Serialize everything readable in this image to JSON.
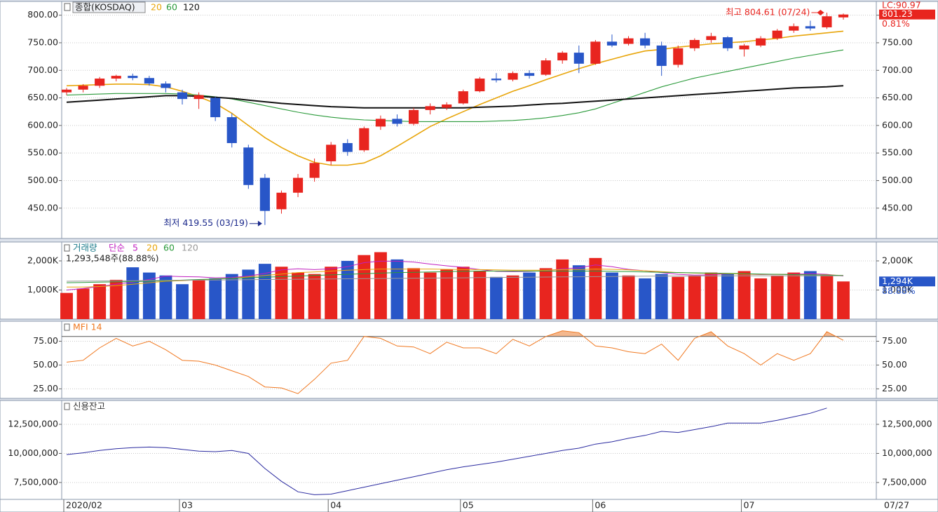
{
  "chart_data": [
    {
      "type": "candlestick",
      "title": "종합(KOSDAQ)",
      "categories": [
        "2020/02",
        null,
        null,
        null,
        null,
        null,
        null,
        "03",
        null,
        null,
        null,
        null,
        null,
        null,
        null,
        null,
        "04",
        null,
        null,
        null,
        null,
        null,
        null,
        null,
        "05",
        null,
        null,
        null,
        null,
        null,
        null,
        null,
        "06",
        null,
        null,
        null,
        null,
        null,
        null,
        null,
        null,
        "07",
        null,
        null,
        null,
        null,
        null,
        "07/27"
      ],
      "ohlc": [
        [
          660,
          668,
          655,
          665
        ],
        [
          665,
          675,
          660,
          672
        ],
        [
          672,
          688,
          668,
          685
        ],
        [
          685,
          692,
          680,
          690
        ],
        [
          690,
          694,
          682,
          686
        ],
        [
          686,
          690,
          672,
          676
        ],
        [
          676,
          680,
          660,
          668
        ],
        [
          660,
          665,
          638,
          648
        ],
        [
          648,
          660,
          630,
          655
        ],
        [
          650,
          652,
          608,
          615
        ],
        [
          615,
          622,
          560,
          568
        ],
        [
          560,
          565,
          485,
          492
        ],
        [
          505,
          512,
          419.55,
          445
        ],
        [
          448,
          482,
          440,
          478
        ],
        [
          478,
          512,
          470,
          505
        ],
        [
          505,
          540,
          498,
          532
        ],
        [
          535,
          570,
          528,
          565
        ],
        [
          568,
          575,
          545,
          552
        ],
        [
          555,
          598,
          552,
          595
        ],
        [
          598,
          618,
          592,
          612
        ],
        [
          612,
          620,
          598,
          603
        ],
        [
          603,
          632,
          600,
          628
        ],
        [
          628,
          640,
          620,
          635
        ],
        [
          632,
          642,
          628,
          638
        ],
        [
          640,
          665,
          638,
          662
        ],
        [
          662,
          688,
          660,
          685
        ],
        [
          685,
          695,
          678,
          682
        ],
        [
          683,
          698,
          680,
          695
        ],
        [
          695,
          700,
          685,
          690
        ],
        [
          692,
          722,
          690,
          718
        ],
        [
          718,
          735,
          712,
          732
        ],
        [
          732,
          745,
          695,
          712
        ],
        [
          712,
          755,
          710,
          752
        ],
        [
          752,
          765,
          742,
          745
        ],
        [
          748,
          762,
          745,
          758
        ],
        [
          758,
          768,
          740,
          745
        ],
        [
          745,
          752,
          690,
          708
        ],
        [
          710,
          745,
          705,
          740
        ],
        [
          740,
          758,
          735,
          755
        ],
        [
          755,
          768,
          750,
          762
        ],
        [
          760,
          762,
          735,
          740
        ],
        [
          738,
          748,
          725,
          745
        ],
        [
          745,
          762,
          742,
          758
        ],
        [
          758,
          775,
          755,
          772
        ],
        [
          772,
          785,
          768,
          780
        ],
        [
          780,
          790,
          772,
          776
        ],
        [
          778,
          804.61,
          775,
          798
        ],
        [
          796,
          803,
          792,
          801.23
        ]
      ],
      "up_color": "#e8251f",
      "down_color": "#2856c8",
      "series": [
        {
          "name": "20",
          "color": "#e8a50a",
          "values": [
            672,
            673,
            674,
            675,
            675,
            674,
            670,
            662,
            652,
            640,
            622,
            600,
            578,
            560,
            545,
            533,
            528,
            528,
            532,
            545,
            562,
            580,
            598,
            612,
            625,
            638,
            650,
            662,
            672,
            683,
            693,
            703,
            712,
            720,
            728,
            735,
            738,
            742,
            745,
            748,
            750,
            752,
            755,
            758,
            762,
            765,
            768,
            771
          ]
        },
        {
          "name": "60",
          "color": "#2a9a3a",
          "values": [
            655,
            656,
            657,
            658,
            658,
            658,
            658,
            657,
            655,
            652,
            648,
            642,
            636,
            630,
            624,
            619,
            615,
            612,
            610,
            609,
            608,
            607,
            607,
            607,
            607,
            607,
            608,
            609,
            611,
            614,
            618,
            623,
            630,
            640,
            650,
            660,
            670,
            678,
            686,
            692,
            698,
            704,
            710,
            716,
            722,
            727,
            732,
            737
          ]
        },
        {
          "name": "120",
          "color": "#111111",
          "values": [
            642,
            644,
            646,
            648,
            650,
            652,
            654,
            654,
            653,
            651,
            649,
            646,
            643,
            640,
            638,
            636,
            634,
            633,
            632,
            632,
            632,
            632,
            632,
            632,
            632,
            633,
            634,
            635,
            637,
            639,
            640,
            642,
            644,
            646,
            648,
            650,
            652,
            654,
            656,
            658,
            660,
            662,
            664,
            666,
            668,
            669,
            670,
            672
          ]
        }
      ],
      "ylim": [
        395,
        825
      ],
      "yticks": [
        {
          "value": 450,
          "label": "450.00"
        },
        {
          "value": 500,
          "label": "500.00"
        },
        {
          "value": 550,
          "label": "550.00"
        },
        {
          "value": 600,
          "label": "600.00"
        },
        {
          "value": 650,
          "label": "650.00"
        },
        {
          "value": 700,
          "label": "700.00"
        },
        {
          "value": 750,
          "label": "750.00"
        },
        {
          "value": 800,
          "label": "800.00"
        }
      ],
      "grid": true,
      "high_label": "최고 804.61 (07/24)",
      "low_label": "최저 419.55 (03/19)",
      "last_label": "801.23",
      "change_label": "0.81%",
      "lc_label": "LC:90.97"
    },
    {
      "type": "bar",
      "title": "거래량",
      "subtitle": "단순",
      "info": "1,293,548주(88.88%)",
      "values": [
        900,
        1050,
        1200,
        1350,
        1780,
        1600,
        1500,
        1200,
        1350,
        1400,
        1550,
        1700,
        1900,
        1800,
        1600,
        1550,
        1800,
        2000,
        2200,
        2300,
        2050,
        1750,
        1600,
        1700,
        1800,
        1650,
        1450,
        1500,
        1600,
        1750,
        2050,
        1850,
        2100,
        1600,
        1500,
        1400,
        1550,
        1450,
        1500,
        1600,
        1550,
        1650,
        1400,
        1500,
        1600,
        1650,
        1500,
        1294
      ],
      "series": [
        {
          "name": "5",
          "color": "#c020c0",
          "values": [
            1000,
            1050,
            1120,
            1200,
            1270,
            1360,
            1480,
            1460,
            1450,
            1420,
            1430,
            1480,
            1570,
            1690,
            1730,
            1700,
            1730,
            1800,
            1940,
            1990,
            1990,
            1960,
            1890,
            1830,
            1780,
            1700,
            1640,
            1630,
            1640,
            1660,
            1730,
            1760,
            1860,
            1800,
            1710,
            1660,
            1600,
            1540,
            1510,
            1520,
            1560,
            1550,
            1530,
            1540,
            1540,
            1560,
            1540,
            1480
          ]
        },
        {
          "name": "20",
          "color": "#e8a50a",
          "values": [
            1100,
            1100,
            1120,
            1150,
            1200,
            1250,
            1300,
            1320,
            1350,
            1380,
            1400,
            1450,
            1500,
            1550,
            1600,
            1620,
            1650,
            1680,
            1700,
            1720,
            1720,
            1720,
            1720,
            1710,
            1700,
            1700,
            1690,
            1680,
            1680,
            1680,
            1700,
            1700,
            1720,
            1710,
            1690,
            1660,
            1630,
            1600,
            1580,
            1570,
            1560,
            1550,
            1540,
            1540,
            1530,
            1520,
            1520,
            1500
          ]
        },
        {
          "name": "60",
          "color": "#2a9a3a",
          "values": [
            1250,
            1260,
            1270,
            1280,
            1290,
            1300,
            1320,
            1340,
            1360,
            1380,
            1400,
            1420,
            1440,
            1460,
            1480,
            1500,
            1520,
            1540,
            1560,
            1580,
            1600,
            1610,
            1620,
            1630,
            1640,
            1650,
            1650,
            1650,
            1650,
            1650,
            1650,
            1650,
            1650,
            1640,
            1630,
            1620,
            1610,
            1600,
            1590,
            1580,
            1570,
            1560,
            1550,
            1540,
            1530,
            1520,
            1510,
            1500
          ]
        },
        {
          "name": "120",
          "color": "#999999",
          "values": [
            1300,
            1305,
            1310,
            1315,
            1320,
            1325,
            1330,
            1335,
            1340,
            1345,
            1350,
            1355,
            1360,
            1365,
            1370,
            1375,
            1380,
            1385,
            1390,
            1395,
            1400,
            1405,
            1410,
            1415,
            1420,
            1425,
            1430,
            1435,
            1440,
            1445,
            1450,
            1455,
            1460,
            1465,
            1470,
            1475,
            1478,
            1480,
            1482,
            1484,
            1486,
            1488,
            1490,
            1490,
            1490,
            1490,
            1490,
            1490
          ]
        }
      ],
      "ylim": [
        0,
        2650
      ],
      "yticks": [
        {
          "value": 1000,
          "label": "1,000K"
        },
        {
          "value": 2000,
          "label": "2,000K"
        }
      ],
      "grid": true,
      "last_label": "1,294K",
      "pct_label": "88.88%",
      "label_color": "#2856c8"
    },
    {
      "type": "line",
      "title": "MFI 14",
      "color": "#f07820",
      "fill_color": "#f4b88e",
      "values": [
        53,
        55,
        68,
        78,
        70,
        75,
        66,
        55,
        54,
        50,
        44,
        38,
        27,
        26,
        20,
        35,
        52,
        55,
        80,
        78,
        70,
        69,
        62,
        74,
        68,
        68,
        62,
        77,
        70,
        80,
        86,
        84,
        70,
        68,
        64,
        62,
        72,
        55,
        78,
        85,
        70,
        62,
        50,
        62,
        55,
        62,
        85,
        76
      ],
      "reference_line": 80,
      "ylim": [
        15,
        96
      ],
      "yticks": [
        {
          "value": 25,
          "label": "25.00"
        },
        {
          "value": 50,
          "label": "50.00"
        },
        {
          "value": 75,
          "label": "75.00"
        }
      ],
      "grid": true
    },
    {
      "type": "line",
      "title": "신용잔고",
      "color": "#2a2aa0",
      "values": [
        9900000,
        10050000,
        10250000,
        10400000,
        10500000,
        10550000,
        10500000,
        10350000,
        10200000,
        10150000,
        10250000,
        10000000,
        8700000,
        7600000,
        6700000,
        6450000,
        6500000,
        6800000,
        7100000,
        7400000,
        7700000,
        8000000,
        8300000,
        8600000,
        8850000,
        9050000,
        9250000,
        9500000,
        9750000,
        10000000,
        10250000,
        10450000,
        10800000,
        11000000,
        11300000,
        11550000,
        11900000,
        11800000,
        12050000,
        12300000,
        12600000,
        12600000,
        12600000,
        12850000,
        13150000,
        13450000,
        13900000,
        null
      ],
      "ylim": [
        6050000,
        14550000
      ],
      "yticks": [
        {
          "value": 7500000,
          "label": "7,500,000"
        },
        {
          "value": 10000000,
          "label": "10,000,000"
        },
        {
          "value": 12500000,
          "label": "12,500,000"
        }
      ],
      "grid": true
    }
  ]
}
